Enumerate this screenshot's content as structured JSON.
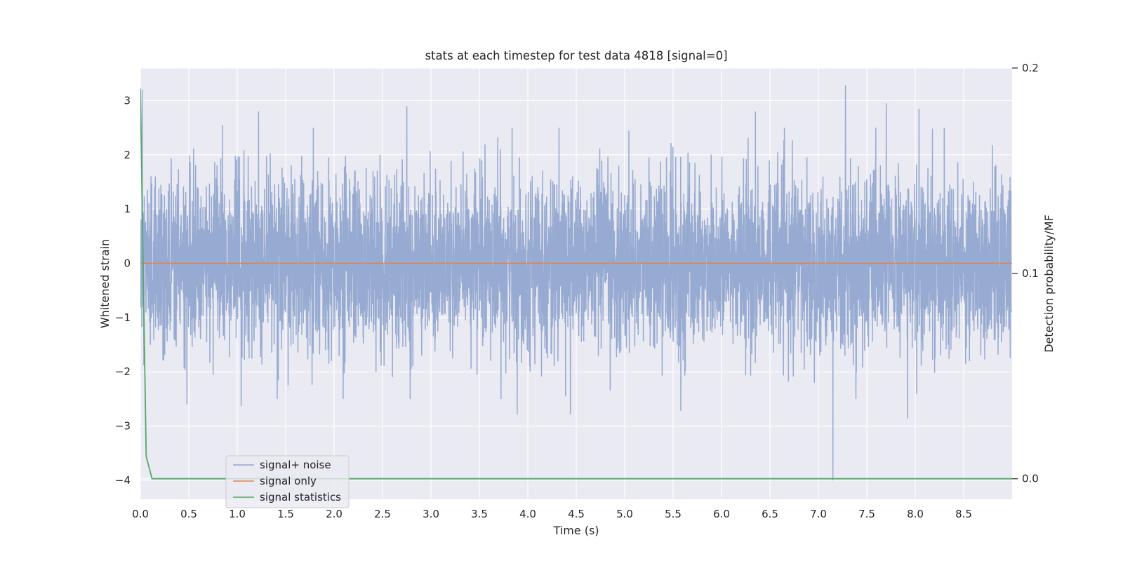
{
  "chart_data": {
    "type": "line",
    "title": "stats at each timestep for test data 4818 [signal=0]",
    "xlabel": "Time (s)",
    "ylabel": "Whitened strain",
    "y2label": "Detection probability/MF",
    "xlim": [
      0.0,
      9.0
    ],
    "ylim": [
      -4.35,
      3.6
    ],
    "y2lim": [
      -0.01,
      0.2
    ],
    "x_ticks": [
      "0.0",
      "0.5",
      "1.0",
      "1.5",
      "2.0",
      "2.5",
      "3.0",
      "3.5",
      "4.0",
      "4.5",
      "5.0",
      "5.5",
      "6.0",
      "6.5",
      "7.0",
      "7.5",
      "8.0",
      "8.5"
    ],
    "y_ticks": [
      "3",
      "2",
      "1",
      "0",
      "−1",
      "−2",
      "−3",
      "−4"
    ],
    "y_tick_values": [
      3,
      2,
      1,
      0,
      -1,
      -2,
      -3,
      -4
    ],
    "y2_ticks": [
      "0.2",
      "0.1",
      "0.0"
    ],
    "y2_tick_values": [
      0.2,
      0.1,
      0.0
    ],
    "grid": true,
    "legend_placement": "lower-left",
    "series": [
      {
        "name": "signal+ noise",
        "color": "#92a6cf",
        "axis": "left",
        "description": "dense whitened strain noise, amplitude mostly within about ±1.5, extremes near +3.3 and −4.0 at t≈7.15 s",
        "amplitude_range": [
          -4.0,
          3.3
        ],
        "peaks": [
          {
            "x": 0.02,
            "y": 3.2
          },
          {
            "x": 0.85,
            "y": 2.55
          },
          {
            "x": 1.22,
            "y": 2.8
          },
          {
            "x": 2.75,
            "y": 2.9
          },
          {
            "x": 3.89,
            "y": -2.78
          },
          {
            "x": 4.44,
            "y": -2.78
          },
          {
            "x": 5.58,
            "y": -2.72
          },
          {
            "x": 6.35,
            "y": 2.8
          },
          {
            "x": 7.15,
            "y": -4.0
          },
          {
            "x": 7.28,
            "y": 3.28
          },
          {
            "x": 7.7,
            "y": 2.95
          },
          {
            "x": 7.92,
            "y": -2.86
          },
          {
            "x": 8.04,
            "y": 2.85
          },
          {
            "x": 1.04,
            "y": -2.63
          },
          {
            "x": 0.48,
            "y": -2.6
          }
        ]
      },
      {
        "name": "signal only",
        "color": "#dd8452",
        "axis": "left",
        "x": [
          0.0,
          9.0
        ],
        "y": [
          0.0,
          0.0
        ]
      },
      {
        "name": "signal statistics",
        "color": "#55a868",
        "axis": "right",
        "x": [
          0.0,
          0.03,
          0.06,
          0.12,
          0.5,
          1.0,
          2.0,
          3.0,
          4.0,
          5.0,
          6.0,
          7.0,
          8.0,
          9.0
        ],
        "y": [
          0.19,
          0.1,
          0.011,
          0.0,
          0.0,
          0.0,
          0.0,
          0.0,
          0.0,
          0.0,
          0.0,
          0.0,
          0.0,
          0.0
        ]
      }
    ]
  }
}
